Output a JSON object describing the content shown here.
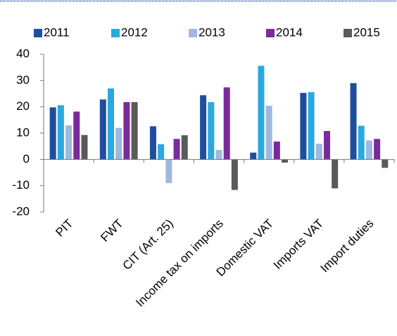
{
  "chart_data": {
    "type": "bar",
    "categories": [
      "PIT",
      "FWT",
      "CIT (Art. 25)",
      "Income tax on imports",
      "Domestic VAT",
      "Imports VAT",
      "Import duties"
    ],
    "series": [
      {
        "name": "2011",
        "color": "#1f4e9c",
        "values": [
          19.8,
          22.8,
          12.6,
          24.4,
          2.6,
          25.3,
          29
        ]
      },
      {
        "name": "2012",
        "color": "#2aa8e0",
        "values": [
          20.6,
          27,
          5.8,
          21.8,
          35.6,
          25.6,
          12.8
        ]
      },
      {
        "name": "2013",
        "color": "#9fb8de",
        "values": [
          13,
          12,
          -9,
          3.6,
          20.4,
          6,
          7.2
        ]
      },
      {
        "name": "2014",
        "color": "#7b2a9c",
        "values": [
          18.2,
          21.8,
          7.8,
          27.4,
          6.8,
          10.8,
          7.8
        ]
      },
      {
        "name": "2015",
        "color": "#5a5a5a",
        "values": [
          9.3,
          21.8,
          9.2,
          -11.6,
          -1.2,
          -11,
          -3.2
        ]
      }
    ],
    "ylim": [
      -20,
      40
    ],
    "yticks": [
      -20,
      -10,
      0,
      10,
      20,
      30,
      40
    ],
    "grid": false
  }
}
